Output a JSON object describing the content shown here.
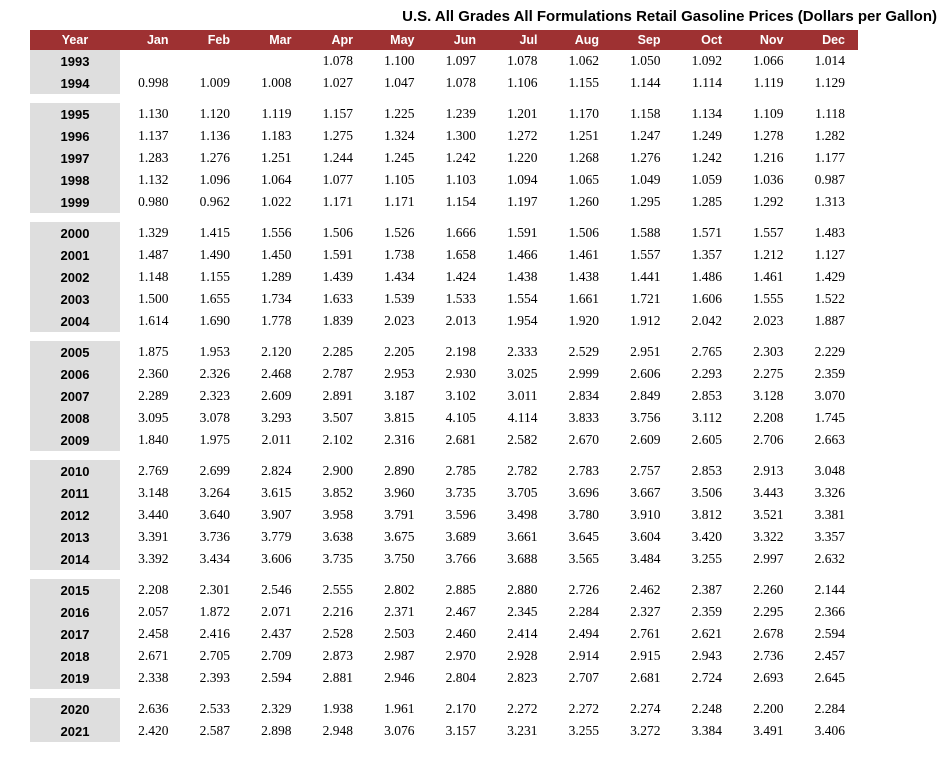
{
  "colors": {
    "header_bg": "#9E3132",
    "header_text": "#FFFFFF",
    "year_col_bg": "#DEDEDE"
  },
  "chart_data": {
    "type": "table",
    "title": "U.S. All Grades All Formulations Retail Gasoline Prices (Dollars per Gallon)",
    "columns": [
      "Year",
      "Jan",
      "Feb",
      "Mar",
      "Apr",
      "May",
      "Jun",
      "Jul",
      "Aug",
      "Sep",
      "Oct",
      "Nov",
      "Dec"
    ],
    "row_groups": [
      {
        "rows": [
          {
            "year": "1993",
            "values": [
              "",
              "",
              "",
              "1.078",
              "1.100",
              "1.097",
              "1.078",
              "1.062",
              "1.050",
              "1.092",
              "1.066",
              "1.014"
            ]
          },
          {
            "year": "1994",
            "values": [
              "0.998",
              "1.009",
              "1.008",
              "1.027",
              "1.047",
              "1.078",
              "1.106",
              "1.155",
              "1.144",
              "1.114",
              "1.119",
              "1.129"
            ]
          }
        ]
      },
      {
        "rows": [
          {
            "year": "1995",
            "values": [
              "1.130",
              "1.120",
              "1.119",
              "1.157",
              "1.225",
              "1.239",
              "1.201",
              "1.170",
              "1.158",
              "1.134",
              "1.109",
              "1.118"
            ]
          },
          {
            "year": "1996",
            "values": [
              "1.137",
              "1.136",
              "1.183",
              "1.275",
              "1.324",
              "1.300",
              "1.272",
              "1.251",
              "1.247",
              "1.249",
              "1.278",
              "1.282"
            ]
          },
          {
            "year": "1997",
            "values": [
              "1.283",
              "1.276",
              "1.251",
              "1.244",
              "1.245",
              "1.242",
              "1.220",
              "1.268",
              "1.276",
              "1.242",
              "1.216",
              "1.177"
            ]
          },
          {
            "year": "1998",
            "values": [
              "1.132",
              "1.096",
              "1.064",
              "1.077",
              "1.105",
              "1.103",
              "1.094",
              "1.065",
              "1.049",
              "1.059",
              "1.036",
              "0.987"
            ]
          },
          {
            "year": "1999",
            "values": [
              "0.980",
              "0.962",
              "1.022",
              "1.171",
              "1.171",
              "1.154",
              "1.197",
              "1.260",
              "1.295",
              "1.285",
              "1.292",
              "1.313"
            ]
          }
        ]
      },
      {
        "rows": [
          {
            "year": "2000",
            "values": [
              "1.329",
              "1.415",
              "1.556",
              "1.506",
              "1.526",
              "1.666",
              "1.591",
              "1.506",
              "1.588",
              "1.571",
              "1.557",
              "1.483"
            ]
          },
          {
            "year": "2001",
            "values": [
              "1.487",
              "1.490",
              "1.450",
              "1.591",
              "1.738",
              "1.658",
              "1.466",
              "1.461",
              "1.557",
              "1.357",
              "1.212",
              "1.127"
            ]
          },
          {
            "year": "2002",
            "values": [
              "1.148",
              "1.155",
              "1.289",
              "1.439",
              "1.434",
              "1.424",
              "1.438",
              "1.438",
              "1.441",
              "1.486",
              "1.461",
              "1.429"
            ]
          },
          {
            "year": "2003",
            "values": [
              "1.500",
              "1.655",
              "1.734",
              "1.633",
              "1.539",
              "1.533",
              "1.554",
              "1.661",
              "1.721",
              "1.606",
              "1.555",
              "1.522"
            ]
          },
          {
            "year": "2004",
            "values": [
              "1.614",
              "1.690",
              "1.778",
              "1.839",
              "2.023",
              "2.013",
              "1.954",
              "1.920",
              "1.912",
              "2.042",
              "2.023",
              "1.887"
            ]
          }
        ]
      },
      {
        "rows": [
          {
            "year": "2005",
            "values": [
              "1.875",
              "1.953",
              "2.120",
              "2.285",
              "2.205",
              "2.198",
              "2.333",
              "2.529",
              "2.951",
              "2.765",
              "2.303",
              "2.229"
            ]
          },
          {
            "year": "2006",
            "values": [
              "2.360",
              "2.326",
              "2.468",
              "2.787",
              "2.953",
              "2.930",
              "3.025",
              "2.999",
              "2.606",
              "2.293",
              "2.275",
              "2.359"
            ]
          },
          {
            "year": "2007",
            "values": [
              "2.289",
              "2.323",
              "2.609",
              "2.891",
              "3.187",
              "3.102",
              "3.011",
              "2.834",
              "2.849",
              "2.853",
              "3.128",
              "3.070"
            ]
          },
          {
            "year": "2008",
            "values": [
              "3.095",
              "3.078",
              "3.293",
              "3.507",
              "3.815",
              "4.105",
              "4.114",
              "3.833",
              "3.756",
              "3.112",
              "2.208",
              "1.745"
            ]
          },
          {
            "year": "2009",
            "values": [
              "1.840",
              "1.975",
              "2.011",
              "2.102",
              "2.316",
              "2.681",
              "2.582",
              "2.670",
              "2.609",
              "2.605",
              "2.706",
              "2.663"
            ]
          }
        ]
      },
      {
        "rows": [
          {
            "year": "2010",
            "values": [
              "2.769",
              "2.699",
              "2.824",
              "2.900",
              "2.890",
              "2.785",
              "2.782",
              "2.783",
              "2.757",
              "2.853",
              "2.913",
              "3.048"
            ]
          },
          {
            "year": "2011",
            "values": [
              "3.148",
              "3.264",
              "3.615",
              "3.852",
              "3.960",
              "3.735",
              "3.705",
              "3.696",
              "3.667",
              "3.506",
              "3.443",
              "3.326"
            ]
          },
          {
            "year": "2012",
            "values": [
              "3.440",
              "3.640",
              "3.907",
              "3.958",
              "3.791",
              "3.596",
              "3.498",
              "3.780",
              "3.910",
              "3.812",
              "3.521",
              "3.381"
            ]
          },
          {
            "year": "2013",
            "values": [
              "3.391",
              "3.736",
              "3.779",
              "3.638",
              "3.675",
              "3.689",
              "3.661",
              "3.645",
              "3.604",
              "3.420",
              "3.322",
              "3.357"
            ]
          },
          {
            "year": "2014",
            "values": [
              "3.392",
              "3.434",
              "3.606",
              "3.735",
              "3.750",
              "3.766",
              "3.688",
              "3.565",
              "3.484",
              "3.255",
              "2.997",
              "2.632"
            ]
          }
        ]
      },
      {
        "rows": [
          {
            "year": "2015",
            "values": [
              "2.208",
              "2.301",
              "2.546",
              "2.555",
              "2.802",
              "2.885",
              "2.880",
              "2.726",
              "2.462",
              "2.387",
              "2.260",
              "2.144"
            ]
          },
          {
            "year": "2016",
            "values": [
              "2.057",
              "1.872",
              "2.071",
              "2.216",
              "2.371",
              "2.467",
              "2.345",
              "2.284",
              "2.327",
              "2.359",
              "2.295",
              "2.366"
            ]
          },
          {
            "year": "2017",
            "values": [
              "2.458",
              "2.416",
              "2.437",
              "2.528",
              "2.503",
              "2.460",
              "2.414",
              "2.494",
              "2.761",
              "2.621",
              "2.678",
              "2.594"
            ]
          },
          {
            "year": "2018",
            "values": [
              "2.671",
              "2.705",
              "2.709",
              "2.873",
              "2.987",
              "2.970",
              "2.928",
              "2.914",
              "2.915",
              "2.943",
              "2.736",
              "2.457"
            ]
          },
          {
            "year": "2019",
            "values": [
              "2.338",
              "2.393",
              "2.594",
              "2.881",
              "2.946",
              "2.804",
              "2.823",
              "2.707",
              "2.681",
              "2.724",
              "2.693",
              "2.645"
            ]
          }
        ]
      },
      {
        "rows": [
          {
            "year": "2020",
            "values": [
              "2.636",
              "2.533",
              "2.329",
              "1.938",
              "1.961",
              "2.170",
              "2.272",
              "2.272",
              "2.274",
              "2.248",
              "2.200",
              "2.284"
            ]
          },
          {
            "year": "2021",
            "values": [
              "2.420",
              "2.587",
              "2.898",
              "2.948",
              "3.076",
              "3.157",
              "3.231",
              "3.255",
              "3.272",
              "3.384",
              "3.491",
              "3.406"
            ]
          }
        ]
      }
    ]
  }
}
